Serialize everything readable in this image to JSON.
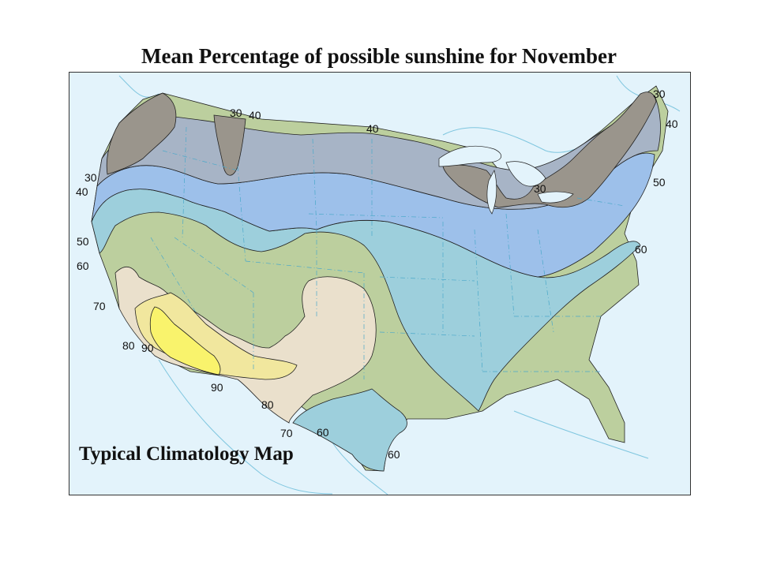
{
  "title": "Mean Percentage of possible sunshine for November",
  "map_label": "Typical Climatology Map",
  "contour_labels": [
    "30",
    "40",
    "40",
    "30",
    "40",
    "50",
    "60",
    "70",
    "80",
    "90",
    "90",
    "80",
    "70",
    "60",
    "60",
    "30",
    "30",
    "40",
    "50",
    "60"
  ],
  "colors": {
    "ocean": "#e3f3fb",
    "zone_30": "#9a958c",
    "zone_40": "#a7b4c6",
    "zone_50": "#9dc0ea",
    "zone_60": "#9dcfdc",
    "zone_70": "#bccf9e",
    "zone_80": "#eae0cc",
    "zone_90": "#f1e79e",
    "zone_90_plus": "#f9f36c"
  }
}
